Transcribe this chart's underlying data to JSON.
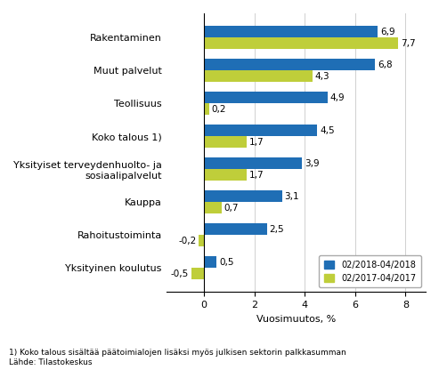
{
  "categories": [
    "Rakentaminen",
    "Muut palvelut",
    "Teollisuus",
    "Koko talous 1)",
    "Yksityiset terveydenhuolto- ja\nsosiaalipalvelut",
    "Kauppa",
    "Rahoitustoiminta",
    "Yksityinen koulutus"
  ],
  "series1_values": [
    6.9,
    6.8,
    4.9,
    4.5,
    3.9,
    3.1,
    2.5,
    0.5
  ],
  "series2_values": [
    7.7,
    4.3,
    0.2,
    1.7,
    1.7,
    0.7,
    -0.2,
    -0.5
  ],
  "series1_color": "#1F6EB5",
  "series2_color": "#BFCE3A",
  "series1_label": "02/2018-04/2018",
  "series2_label": "02/2017-04/2017",
  "xlabel": "Vuosimuutos, %",
  "xlim": [
    -1.5,
    8.8
  ],
  "footnote1": "1) Koko talous sisältää päätoimialojen lisäksi myös julkisen sektorin palkkasumman",
  "footnote2": "Lähde: Tilastokeskus",
  "bar_height": 0.35,
  "tick_fontsize": 8,
  "value_fontsize": 7.5
}
